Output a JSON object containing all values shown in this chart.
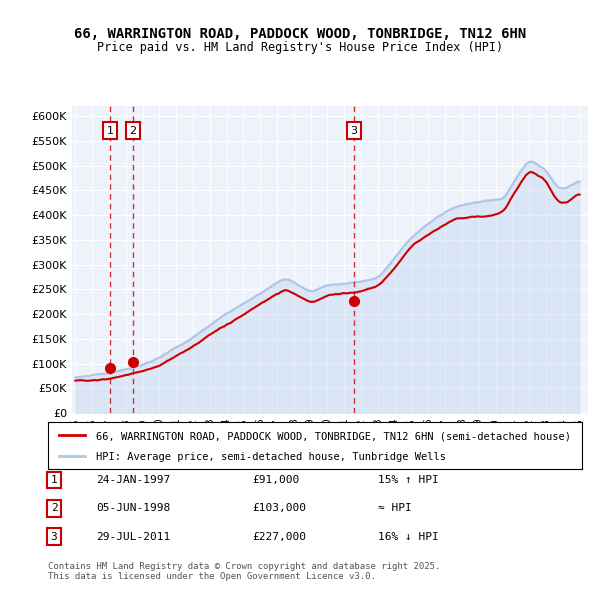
{
  "title_line1": "66, WARRINGTON ROAD, PADDOCK WOOD, TONBRIDGE, TN12 6HN",
  "title_line2": "Price paid vs. HM Land Registry's House Price Index (HPI)",
  "xlabel": "",
  "ylabel": "",
  "ylim": [
    0,
    620000
  ],
  "yticks": [
    0,
    50000,
    100000,
    150000,
    200000,
    250000,
    300000,
    350000,
    400000,
    450000,
    500000,
    550000,
    600000
  ],
  "ytick_labels": [
    "£0",
    "£50K",
    "£100K",
    "£150K",
    "£200K",
    "£250K",
    "£300K",
    "£350K",
    "£400K",
    "£450K",
    "£500K",
    "£550K",
    "£600K"
  ],
  "hpi_color": "#aec6e8",
  "price_color": "#cc0000",
  "sale_marker_color": "#cc0000",
  "vline_color": "#cc0000",
  "background_color": "#eef3fb",
  "sale_dates": [
    "1997-01-24",
    "1998-06-05",
    "2011-07-29"
  ],
  "sale_prices": [
    91000,
    103000,
    227000
  ],
  "sale_labels": [
    "1",
    "2",
    "3"
  ],
  "legend_line1": "66, WARRINGTON ROAD, PADDOCK WOOD, TONBRIDGE, TN12 6HN (semi-detached house)",
  "legend_line2": "HPI: Average price, semi-detached house, Tunbridge Wells",
  "table_rows": [
    [
      "1",
      "24-JAN-1997",
      "£91,000",
      "15% ↑ HPI"
    ],
    [
      "2",
      "05-JUN-1998",
      "£103,000",
      "≈ HPI"
    ],
    [
      "3",
      "29-JUL-2011",
      "£227,000",
      "16% ↓ HPI"
    ]
  ],
  "footer": "Contains HM Land Registry data © Crown copyright and database right 2025.\nThis data is licensed under the Open Government Licence v3.0."
}
